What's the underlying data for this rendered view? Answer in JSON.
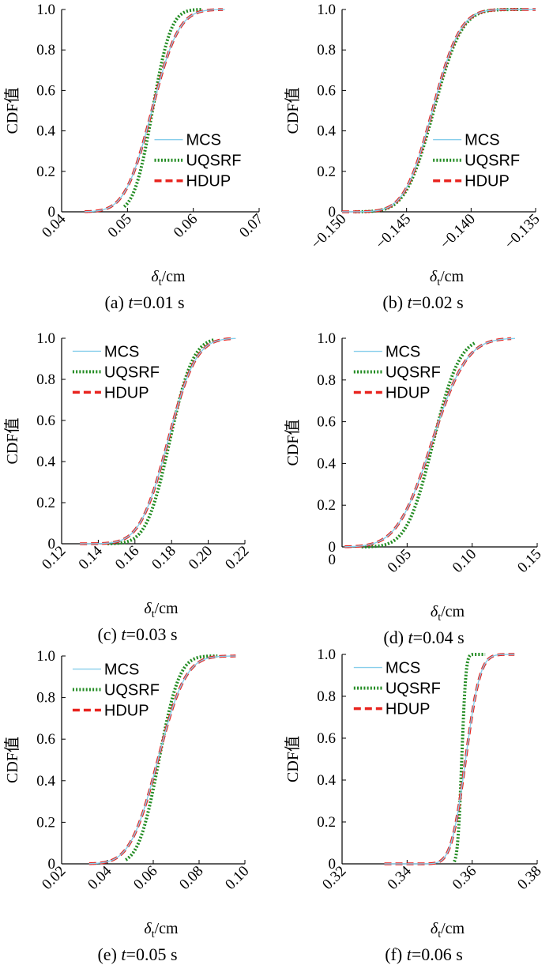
{
  "chart_data": [
    {
      "type": "line",
      "caption_prefix": "(a)",
      "caption_var": "t",
      "caption_value": "=0.01 s",
      "xlabel_main": "δ",
      "xlabel_sub": "t",
      "xlabel_unit": "/cm",
      "ylabel": "CDF值",
      "xlim": [
        0.04,
        0.07
      ],
      "ylim": [
        0,
        1
      ],
      "xticks": [
        0.04,
        0.05,
        0.06,
        0.07
      ],
      "xtick_labels": [
        "0.04",
        "0.05",
        "0.06",
        "0.07"
      ],
      "yticks": [
        0,
        0.2,
        0.4,
        0.6,
        0.8,
        1.0
      ],
      "ytick_labels": [
        "0",
        "0.2",
        "0.4",
        "0.6",
        "0.8",
        "1.0"
      ],
      "legend_position": "right",
      "series": [
        {
          "name": "MCS",
          "color": "#87CEEB",
          "style": "solid",
          "mean": 0.0537,
          "sd": 0.0032,
          "min": 0.0435,
          "max": 0.0648
        },
        {
          "name": "UQSRF",
          "color": "#228B22",
          "style": "dotted",
          "mean": 0.0538,
          "sd": 0.0022,
          "min": 0.0495,
          "max": 0.0612
        },
        {
          "name": "HDUP",
          "color": "#E8231E",
          "style": "dashed",
          "mean": 0.0537,
          "sd": 0.0032,
          "min": 0.0435,
          "max": 0.0645
        }
      ]
    },
    {
      "type": "line",
      "caption_prefix": "(b)",
      "caption_var": "t",
      "caption_value": "=0.02 s",
      "xlabel_main": "δ",
      "xlabel_sub": "t",
      "xlabel_unit": "/cm",
      "ylabel": "CDF值",
      "xlim": [
        -0.15,
        -0.135
      ],
      "ylim": [
        0,
        1
      ],
      "xticks": [
        -0.15,
        -0.145,
        -0.14,
        -0.135
      ],
      "xtick_labels": [
        "−0.150",
        "−0.145",
        "−0.140",
        "−0.135"
      ],
      "yticks": [
        0,
        0.2,
        0.4,
        0.6,
        0.8,
        1.0
      ],
      "ytick_labels": [
        "0",
        "0.2",
        "0.4",
        "0.6",
        "0.8",
        "1.0"
      ],
      "legend_position": "right",
      "series": [
        {
          "name": "MCS",
          "color": "#87CEEB",
          "style": "solid",
          "mean": -0.143,
          "sd": 0.0017,
          "min": -0.15,
          "max": -0.135
        },
        {
          "name": "UQSRF",
          "color": "#228B22",
          "style": "dotted",
          "mean": -0.1429,
          "sd": 0.0017,
          "min": -0.149,
          "max": -0.136
        },
        {
          "name": "HDUP",
          "color": "#E8231E",
          "style": "dashed",
          "mean": -0.143,
          "sd": 0.0017,
          "min": -0.15,
          "max": -0.135
        }
      ]
    },
    {
      "type": "line",
      "caption_prefix": "(c)",
      "caption_var": "t",
      "caption_value": "=0.03 s",
      "xlabel_main": "δ",
      "xlabel_sub": "t",
      "xlabel_unit": "/cm",
      "ylabel": "CDF值",
      "xlim": [
        0.12,
        0.22
      ],
      "ylim": [
        0,
        1
      ],
      "xticks": [
        0.12,
        0.14,
        0.16,
        0.18,
        0.2,
        0.22
      ],
      "xtick_labels": [
        "0.12",
        "0.14",
        "0.16",
        "0.18",
        "0.20",
        "0.22"
      ],
      "yticks": [
        0,
        0.2,
        0.4,
        0.6,
        0.8,
        1.0
      ],
      "ytick_labels": [
        "0",
        "0.2",
        "0.4",
        "0.6",
        "0.8",
        "1.0"
      ],
      "legend_position": "top-left",
      "series": [
        {
          "name": "MCS",
          "color": "#87CEEB",
          "style": "solid",
          "mean": 0.178,
          "sd": 0.012,
          "min": 0.13,
          "max": 0.215
        },
        {
          "name": "UQSRF",
          "color": "#228B22",
          "style": "dotted",
          "mean": 0.179,
          "sd": 0.01,
          "min": 0.145,
          "max": 0.203
        },
        {
          "name": "HDUP",
          "color": "#E8231E",
          "style": "dashed",
          "mean": 0.178,
          "sd": 0.012,
          "min": 0.13,
          "max": 0.214
        }
      ]
    },
    {
      "type": "line",
      "caption_prefix": "(d)",
      "caption_var": "t",
      "caption_value": "=0.04 s",
      "xlabel_main": "δ",
      "xlabel_sub": "t",
      "xlabel_unit": "/cm",
      "ylabel": "CDF值",
      "xlim": [
        0,
        0.15
      ],
      "ylim": [
        0,
        1
      ],
      "xticks": [
        0.05,
        0.1,
        0.15
      ],
      "xtick_labels": [
        "0.05",
        "0.10",
        "0.15"
      ],
      "yticks": [
        0,
        0.2,
        0.4,
        0.6,
        0.8,
        1.0
      ],
      "ytick_labels": [
        "0",
        "0.2",
        "0.4",
        "0.6",
        "0.8",
        "1.0"
      ],
      "legend_position": "top-left",
      "series": [
        {
          "name": "MCS",
          "color": "#87CEEB",
          "style": "solid",
          "mean": 0.069,
          "sd": 0.021,
          "min": 0.002,
          "max": 0.133
        },
        {
          "name": "UQSRF",
          "color": "#228B22",
          "style": "dotted",
          "mean": 0.07,
          "sd": 0.016,
          "min": 0.015,
          "max": 0.102
        },
        {
          "name": "HDUP",
          "color": "#E8231E",
          "style": "dashed",
          "mean": 0.069,
          "sd": 0.021,
          "min": 0.002,
          "max": 0.13
        }
      ]
    },
    {
      "type": "line",
      "caption_prefix": "(e)",
      "caption_var": "t",
      "caption_value": "=0.05 s",
      "xlabel_main": "δ",
      "xlabel_sub": "t",
      "xlabel_unit": "/cm",
      "ylabel": "CDF值",
      "xlim": [
        0.02,
        0.1
      ],
      "ylim": [
        0,
        1
      ],
      "xticks": [
        0.02,
        0.04,
        0.06,
        0.08,
        0.1
      ],
      "xtick_labels": [
        "0.02",
        "0.04",
        "0.06",
        "0.08",
        "0.10"
      ],
      "yticks": [
        0,
        0.2,
        0.4,
        0.6,
        0.8,
        1.0
      ],
      "ytick_labels": [
        "0",
        "0.2",
        "0.4",
        "0.6",
        "0.8",
        "1.0"
      ],
      "legend_position": "top-left",
      "series": [
        {
          "name": "MCS",
          "color": "#87CEEB",
          "style": "solid",
          "mean": 0.062,
          "sd": 0.0095,
          "min": 0.032,
          "max": 0.096
        },
        {
          "name": "UQSRF",
          "color": "#228B22",
          "style": "dotted",
          "mean": 0.0625,
          "sd": 0.007,
          "min": 0.048,
          "max": 0.088
        },
        {
          "name": "HDUP",
          "color": "#E8231E",
          "style": "dashed",
          "mean": 0.062,
          "sd": 0.0095,
          "min": 0.032,
          "max": 0.096
        }
      ]
    },
    {
      "type": "line",
      "caption_prefix": "(f)",
      "caption_var": "t",
      "caption_value": "=0.06 s",
      "xlabel_main": "δ",
      "xlabel_sub": "t",
      "xlabel_unit": "/cm",
      "ylabel": "CDF值",
      "xlim": [
        0.32,
        0.38
      ],
      "ylim": [
        0,
        1
      ],
      "xticks": [
        0.32,
        0.34,
        0.36,
        0.38
      ],
      "xtick_labels": [
        "0.32",
        "0.34",
        "0.36",
        "0.38"
      ],
      "yticks": [
        0,
        0.2,
        0.4,
        0.6,
        0.8,
        1.0
      ],
      "ytick_labels": [
        "0",
        "0.2",
        "0.4",
        "0.6",
        "0.8",
        "1.0"
      ],
      "legend_position": "top-left",
      "series": [
        {
          "name": "MCS",
          "color": "#87CEEB",
          "style": "solid",
          "mean": 0.358,
          "sd": 0.0035,
          "min": 0.333,
          "max": 0.373
        },
        {
          "name": "UQSRF",
          "color": "#228B22",
          "style": "dotted",
          "mean": 0.3568,
          "sd": 0.001,
          "min": 0.3545,
          "max": 0.364
        },
        {
          "name": "HDUP",
          "color": "#E8231E",
          "style": "dashed",
          "mean": 0.358,
          "sd": 0.0035,
          "min": 0.333,
          "max": 0.373
        }
      ]
    }
  ]
}
